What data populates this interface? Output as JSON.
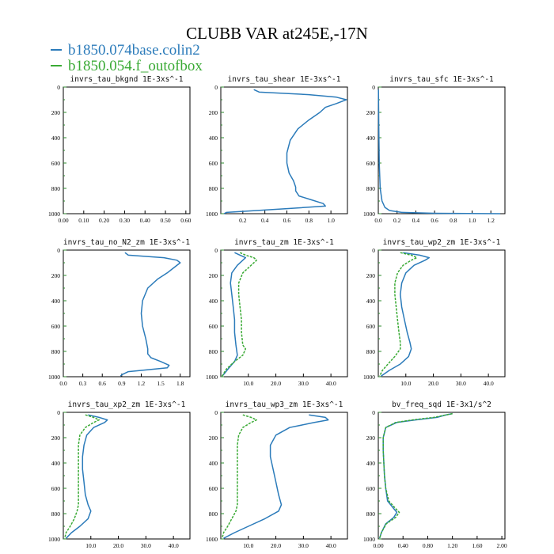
{
  "title": "CLUBB VAR at245E,-17N",
  "legend": [
    {
      "label": "b1850.074base.colin2",
      "color": "#2b7bba"
    },
    {
      "label": "b1850.054.f_outofbox",
      "color": "#3aaa35"
    }
  ],
  "series_colors": [
    "#2b7bba",
    "#3aaa35"
  ],
  "chart_data": [
    {
      "type": "line",
      "title": "invrs_tau_bkgnd   1E-3xs^-1",
      "xlim": [
        0,
        0.62
      ],
      "ylim": [
        1000,
        0
      ],
      "x_ticks": [
        "0.00",
        "0.10",
        "0.20",
        "0.30",
        "0.40",
        "0.50",
        "0.60"
      ],
      "x_tick_values": [
        0,
        0.1,
        0.2,
        0.3,
        0.4,
        0.5,
        0.6
      ],
      "y_ticks": [
        "0",
        "200",
        "400",
        "600",
        "800",
        "1000"
      ],
      "series": []
    },
    {
      "type": "line",
      "title": "invrs_tau_shear   1E-3xs^-1",
      "xlim": [
        0,
        1.15
      ],
      "ylim": [
        1000,
        0
      ],
      "x_ticks": [
        "0.2",
        "0.4",
        "0.6",
        "0.8",
        "1.0"
      ],
      "x_tick_values": [
        0.2,
        0.4,
        0.6,
        0.8,
        1.0
      ],
      "y_ticks": [
        "0",
        "200",
        "400",
        "600",
        "800",
        "1000"
      ],
      "series": [
        {
          "x": [
            0.3,
            0.35,
            0.8,
            1.05,
            1.14,
            1.05,
            0.95,
            0.9,
            0.8,
            0.7,
            0.63,
            0.6,
            0.6,
            0.62,
            0.66,
            0.68,
            0.68,
            0.71,
            0.82,
            0.93,
            0.95,
            0.6,
            0.05,
            0.03
          ],
          "y": [
            20,
            40,
            60,
            80,
            100,
            130,
            160,
            200,
            260,
            330,
            420,
            520,
            600,
            680,
            740,
            790,
            820,
            860,
            890,
            920,
            940,
            960,
            990,
            1000
          ]
        }
      ]
    },
    {
      "type": "line",
      "title": "invrs_tau_sfc   1E-3xs^-1",
      "xlim": [
        0,
        1.35
      ],
      "ylim": [
        1000,
        0
      ],
      "x_ticks": [
        "0.0",
        "0.2",
        "0.4",
        "0.6",
        "0.8",
        "1.0",
        "1.2"
      ],
      "x_tick_values": [
        0,
        0.2,
        0.4,
        0.6,
        0.8,
        1.0,
        1.2
      ],
      "y_ticks": [
        "0",
        "200",
        "400",
        "600",
        "800",
        "1000"
      ],
      "series": [
        {
          "x": [
            0.002,
            0.005,
            0.01,
            0.02,
            0.04,
            0.07,
            0.12,
            0.25,
            0.6,
            1.3
          ],
          "y": [
            20,
            300,
            600,
            800,
            900,
            950,
            975,
            990,
            997,
            1000
          ]
        }
      ]
    },
    {
      "type": "line",
      "title": "invrs_tau_no_N2_zm   1E-3xs^-1",
      "xlim": [
        0,
        1.95
      ],
      "ylim": [
        1000,
        0
      ],
      "x_ticks": [
        "0.0",
        "0.3",
        "0.6",
        "0.9",
        "1.2",
        "1.5",
        "1.8"
      ],
      "x_tick_values": [
        0,
        0.3,
        0.6,
        0.9,
        1.2,
        1.5,
        1.8
      ],
      "y_ticks": [
        "0",
        "200",
        "400",
        "600",
        "800",
        "1000"
      ],
      "series": [
        {
          "x": [
            0.95,
            1.0,
            1.55,
            1.75,
            1.8,
            1.7,
            1.6,
            1.45,
            1.3,
            1.22,
            1.2,
            1.22,
            1.27,
            1.3,
            1.3,
            1.35,
            1.5,
            1.63,
            1.6,
            1.0,
            0.9,
            0.88
          ],
          "y": [
            20,
            40,
            60,
            80,
            100,
            140,
            180,
            230,
            300,
            400,
            500,
            600,
            700,
            780,
            820,
            850,
            880,
            910,
            930,
            960,
            985,
            995
          ]
        }
      ]
    },
    {
      "type": "line",
      "title": "invrs_tau_zm   1E-3xs^-1",
      "xlim": [
        0,
        46
      ],
      "ylim": [
        1000,
        0
      ],
      "x_ticks": [
        "10.0",
        "20.0",
        "30.0",
        "40.0"
      ],
      "x_tick_values": [
        10,
        20,
        30,
        40
      ],
      "y_ticks": [
        "0",
        "200",
        "400",
        "600",
        "800",
        "1000"
      ],
      "series": [
        {
          "name": "b1850.074base.colin2",
          "x": [
            5,
            7,
            9,
            8,
            6,
            4,
            3.5,
            4,
            4.5,
            5,
            5,
            5.5,
            6,
            5,
            3,
            1.5,
            0.5
          ],
          "y": [
            20,
            40,
            60,
            80,
            120,
            180,
            260,
            350,
            450,
            550,
            650,
            750,
            830,
            880,
            930,
            970,
            995
          ]
        },
        {
          "name": "b1850.054.f_outofbox",
          "x": [
            7,
            9,
            12,
            13,
            11,
            8,
            6.5,
            6.5,
            7,
            7.5,
            7.5,
            8,
            9,
            8,
            5,
            2,
            0.5
          ],
          "y": [
            20,
            40,
            60,
            80,
            120,
            180,
            260,
            350,
            450,
            550,
            650,
            750,
            780,
            830,
            880,
            940,
            995
          ]
        }
      ]
    },
    {
      "type": "line",
      "title": "invrs_tau_wp2_zm   1E-3xs^-1",
      "xlim": [
        0,
        46
      ],
      "ylim": [
        1000,
        0
      ],
      "x_ticks": [
        "10.0",
        "20.0",
        "30.0",
        "40.0"
      ],
      "x_tick_values": [
        10,
        20,
        30,
        40
      ],
      "y_ticks": [
        "0",
        "200",
        "400",
        "600",
        "800",
        "1000"
      ],
      "series": [
        {
          "name": "b1850.074base.colin2",
          "x": [
            9,
            15,
            18.5,
            17,
            13,
            10,
            8.5,
            8,
            8.5,
            9.5,
            10.5,
            11.5,
            12,
            11,
            8,
            4,
            1
          ],
          "y": [
            20,
            40,
            60,
            80,
            120,
            180,
            260,
            350,
            450,
            550,
            650,
            730,
            780,
            840,
            900,
            950,
            995
          ]
        },
        {
          "name": "b1850.054.f_outofbox",
          "x": [
            8,
            12,
            14,
            12,
            9,
            7,
            6,
            6,
            6.5,
            7,
            7.5,
            8,
            8,
            6,
            3.5,
            1.5,
            0.5
          ],
          "y": [
            20,
            40,
            60,
            80,
            120,
            180,
            260,
            350,
            450,
            550,
            650,
            730,
            780,
            840,
            900,
            950,
            995
          ]
        }
      ]
    },
    {
      "type": "line",
      "title": "invrs_tau_xp2_zm   1E-3xs^-1",
      "xlim": [
        0,
        46
      ],
      "ylim": [
        1000,
        0
      ],
      "x_ticks": [
        "10.0",
        "20.0",
        "30.0",
        "40.0"
      ],
      "x_tick_values": [
        10,
        20,
        30,
        40
      ],
      "y_ticks": [
        "0",
        "200",
        "400",
        "600",
        "800",
        "1000"
      ],
      "series": [
        {
          "name": "b1850.074base.colin2",
          "x": [
            9,
            13,
            16,
            15,
            11,
            8.5,
            7.5,
            7,
            7,
            7.5,
            8,
            9,
            10,
            9,
            6,
            3,
            1
          ],
          "y": [
            20,
            40,
            60,
            80,
            120,
            180,
            260,
            350,
            450,
            550,
            650,
            730,
            780,
            840,
            900,
            950,
            995
          ]
        },
        {
          "name": "b1850.054.f_outofbox",
          "x": [
            8,
            11,
            13,
            11,
            8,
            6,
            5.5,
            5.5,
            5.5,
            5.5,
            5.5,
            5.5,
            5,
            4,
            2.5,
            1,
            0.5
          ],
          "y": [
            20,
            40,
            60,
            80,
            120,
            180,
            260,
            350,
            450,
            550,
            650,
            730,
            780,
            840,
            900,
            950,
            995
          ]
        }
      ]
    },
    {
      "type": "line",
      "title": "invrs_tau_wp3_zm   1E-3xs^-1",
      "xlim": [
        0,
        46
      ],
      "ylim": [
        1000,
        0
      ],
      "x_ticks": [
        "10.0",
        "20.0",
        "30.0",
        "40.0"
      ],
      "x_tick_values": [
        10,
        20,
        30,
        40
      ],
      "y_ticks": [
        "0",
        "200",
        "400",
        "600",
        "800",
        "1000"
      ],
      "series": [
        {
          "name": "b1850.074base.colin2",
          "x": [
            32,
            38,
            39,
            34,
            25,
            20,
            18,
            18,
            19,
            20,
            21,
            22,
            21,
            16,
            10,
            5,
            1
          ],
          "y": [
            20,
            40,
            60,
            80,
            120,
            180,
            260,
            350,
            450,
            550,
            650,
            730,
            780,
            840,
            900,
            950,
            995
          ]
        },
        {
          "name": "b1850.054.f_outofbox",
          "x": [
            8,
            11,
            13,
            11,
            8,
            6.5,
            6,
            6,
            6,
            6,
            6,
            6,
            5.5,
            4,
            2.5,
            1,
            0.5
          ],
          "y": [
            20,
            40,
            60,
            80,
            120,
            180,
            260,
            350,
            450,
            550,
            650,
            730,
            780,
            840,
            900,
            950,
            995
          ]
        }
      ]
    },
    {
      "type": "line",
      "title": "bv_freq_sqd   1E-3x1/s^2",
      "xlim": [
        0,
        2.05
      ],
      "ylim": [
        1000,
        0
      ],
      "x_ticks": [
        "0.00",
        "0.40",
        "0.80",
        "1.20",
        "1.60",
        "2.00"
      ],
      "x_tick_values": [
        0,
        0.4,
        0.8,
        1.2,
        1.6,
        2.0
      ],
      "y_ticks": [
        "0",
        "200",
        "400",
        "600",
        "800",
        "1000"
      ],
      "series": [
        {
          "name": "b1850.074base.colin2",
          "x": [
            1.2,
            1.1,
            0.95,
            0.6,
            0.3,
            0.12,
            0.08,
            0.08,
            0.09,
            0.1,
            0.12,
            0.15,
            0.25,
            0.3,
            0.25,
            0.12,
            0.05,
            0.02
          ],
          "y": [
            10,
            20,
            40,
            60,
            80,
            120,
            200,
            300,
            400,
            500,
            600,
            700,
            760,
            790,
            830,
            880,
            950,
            995
          ]
        },
        {
          "name": "b1850.054.f_outofbox",
          "x": [
            1.2,
            1.1,
            0.9,
            0.55,
            0.28,
            0.12,
            0.08,
            0.08,
            0.09,
            0.1,
            0.12,
            0.17,
            0.28,
            0.34,
            0.28,
            0.13,
            0.05,
            0.02
          ],
          "y": [
            10,
            20,
            40,
            60,
            80,
            120,
            200,
            300,
            400,
            500,
            600,
            700,
            760,
            790,
            830,
            880,
            950,
            995
          ]
        }
      ]
    }
  ]
}
